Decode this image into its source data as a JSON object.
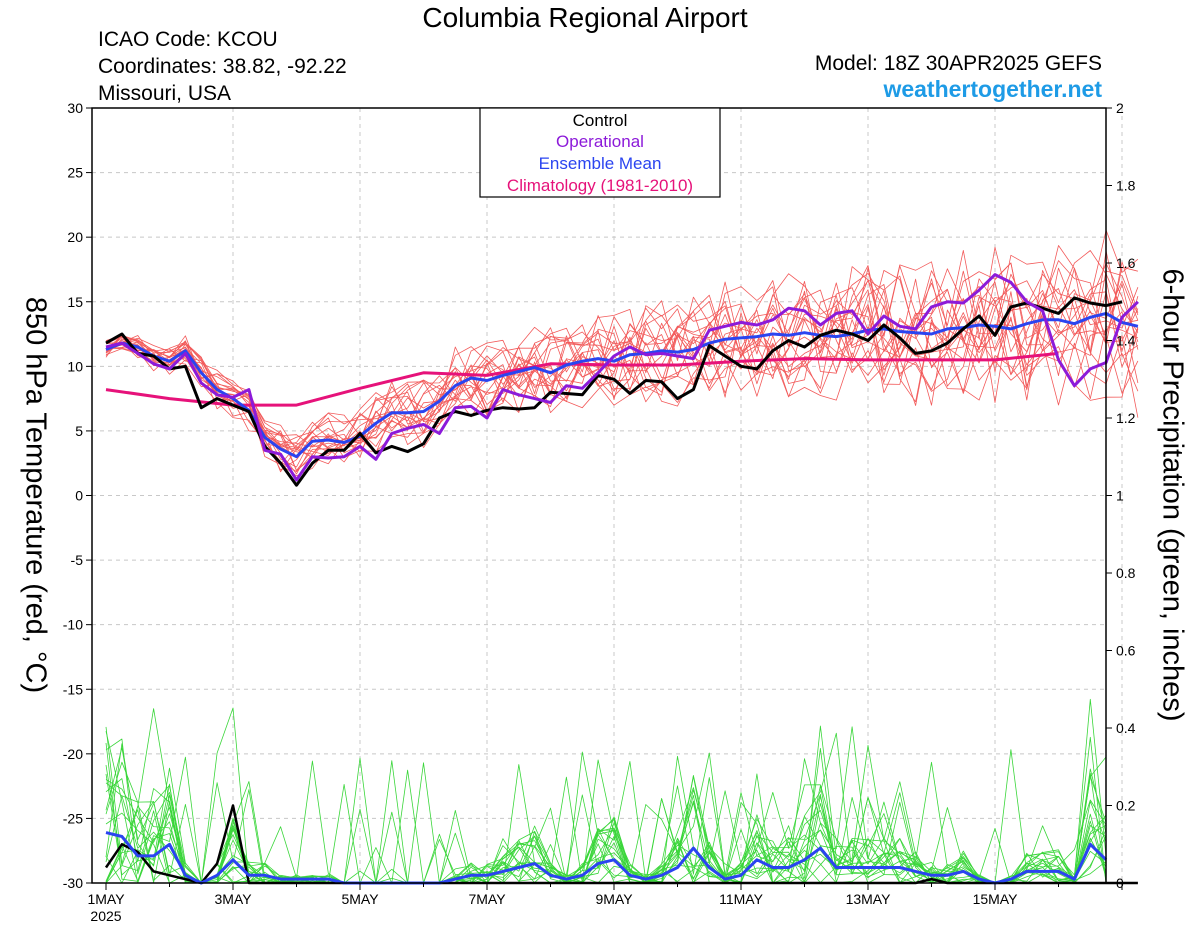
{
  "header": {
    "title": "Columbia Regional Airport",
    "icao": "ICAO Code: KCOU",
    "coords": "Coordinates: 38.82, -92.22",
    "region": "Missouri, USA",
    "model": "Model: 18Z 30APR2025 GEFS",
    "site": "weathertogether.net"
  },
  "legend": {
    "items": [
      {
        "label": "Control",
        "color": "#000000"
      },
      {
        "label": "Operational",
        "color": "#8c1ad9"
      },
      {
        "label": "Ensemble Mean",
        "color": "#2a44f0"
      },
      {
        "label": "Climatology (1981-2010)",
        "color": "#e6127a"
      }
    ]
  },
  "axes": {
    "left_label": "850 hPa Temperature (red, °C)",
    "right_label": "6-hour Precipitation (green, inches)",
    "left_ticks": [
      "30",
      "25",
      "20",
      "15",
      "10",
      "5",
      "0",
      "-5",
      "-10",
      "-15",
      "-20",
      "-25",
      "-30"
    ],
    "right_ticks": [
      "2",
      "1.8",
      "1.6",
      "1.4",
      "1.2",
      "1",
      "0.8",
      "0.6",
      "0.4",
      "0.2",
      "0"
    ],
    "x_ticks": [
      "1MAY",
      "3MAY",
      "5MAY",
      "7MAY",
      "9MAY",
      "11MAY",
      "13MAY",
      "15MAY"
    ],
    "x_year": "2025"
  },
  "colors": {
    "member_temp": "#f25a5a",
    "member_precip": "#3ad63a",
    "control": "#000000",
    "operational": "#8c1ad9",
    "mean": "#2a44f0",
    "climatology": "#e6127a"
  },
  "chart_data": {
    "type": "line",
    "title": "Columbia Regional Airport",
    "xlabel": "",
    "ylabel": "850 hPa Temperature (red, °C)",
    "y2label": "6-hour Precipitation (green, inches)",
    "ylim": [
      -30,
      30
    ],
    "y2lim": [
      0,
      2
    ],
    "x_unit": "days since 1MAY 2025 00Z (6-hourly steps)",
    "x_range": [
      0,
      16
    ],
    "temperature": {
      "control": [
        11.8,
        12.5,
        11,
        10.8,
        9.8,
        10,
        6.8,
        7.5,
        7,
        6.5,
        3.8,
        2.5,
        0.8,
        2.5,
        3.5,
        3.5,
        4.8,
        3.3,
        3.8,
        3.4,
        4,
        6,
        6.5,
        6.2,
        6.6,
        6.8,
        6.7,
        6.8,
        8,
        7.9,
        7.8,
        9.3,
        9,
        7.9,
        8.9,
        8.8,
        7.5,
        8.2,
        11.6,
        10.8,
        10,
        9.8,
        11.2,
        12,
        11.5,
        12.4,
        12.8,
        12.5,
        12,
        13.2,
        12.2,
        11,
        11.2,
        11.8,
        12.9,
        13.9,
        12.4,
        14.6,
        14.9,
        14.5,
        14.1,
        15.3,
        14.9,
        14.7,
        15
      ],
      "operational": [
        11.5,
        11.8,
        11,
        10.2,
        9.8,
        11,
        8.7,
        7.8,
        7.6,
        8.2,
        3.5,
        3.2,
        1.2,
        3,
        2.9,
        3,
        3.8,
        2.8,
        4.8,
        5.2,
        5.5,
        4.8,
        6.8,
        6.9,
        6,
        8.2,
        7.8,
        7.5,
        7.2,
        8.5,
        8.3,
        9.5,
        10.8,
        11.5,
        10.9,
        11,
        10.8,
        10.6,
        12.8,
        13.1,
        13.4,
        13.2,
        13.6,
        14.5,
        14.3,
        13.2,
        14.1,
        14.3,
        12.5,
        13.9,
        13.1,
        12.9,
        14.6,
        15,
        14.9,
        15.9,
        17.1,
        16.5,
        15,
        14.3,
        10.5,
        8.5,
        9.8,
        10.3,
        13.8,
        15
      ],
      "mean": [
        11.3,
        11.8,
        11.5,
        10.8,
        10.4,
        11.2,
        9.5,
        8.2,
        7.5,
        6.6,
        4.5,
        3.6,
        3,
        4.2,
        4.3,
        4.1,
        4.6,
        5.6,
        6.4,
        6.4,
        6.5,
        7.3,
        8.5,
        9.1,
        8.9,
        9.3,
        9.6,
        9.9,
        9.5,
        10.1,
        10.4,
        10.6,
        10.4,
        10.9,
        11,
        11.2,
        11.1,
        11.3,
        11.8,
        12.1,
        12.2,
        12.3,
        12.5,
        12.4,
        12.6,
        12.4,
        12.3,
        12.5,
        12.8,
        12.9,
        12.7,
        12.6,
        12.5,
        12.9,
        13,
        13.2,
        13.1,
        12.9,
        13.3,
        13.6,
        13.6,
        13.3,
        13.8,
        14.1,
        13.4,
        13.1
      ],
      "climatology": [
        8.2,
        7.5,
        7,
        7,
        8.3,
        9.5,
        9.3,
        10.2,
        10.1,
        10.1,
        10.4,
        10.6,
        10.5,
        10.5,
        10.5,
        11
      ]
    },
    "precipitation": {
      "control": [
        0.04,
        0.1,
        0.08,
        0.03,
        0.02,
        0.01,
        0,
        0.05,
        0.2,
        0,
        0,
        0,
        0,
        0,
        0,
        0,
        0,
        0,
        0,
        0,
        0,
        0,
        0,
        0,
        0,
        0,
        0,
        0,
        0,
        0,
        0,
        0,
        0,
        0,
        0,
        0,
        0,
        0,
        0,
        0,
        0,
        0,
        0,
        0,
        0,
        0,
        0,
        0,
        0,
        0,
        0,
        0,
        0.01,
        0,
        0,
        0,
        0,
        0,
        0,
        0,
        0,
        0,
        0,
        0,
        0,
        0
      ],
      "mean": [
        0.13,
        0.12,
        0.07,
        0.07,
        0.1,
        0.02,
        0,
        0.02,
        0.06,
        0.02,
        0.02,
        0.01,
        0.01,
        0.01,
        0.01,
        0,
        0,
        0,
        0,
        0,
        0,
        0,
        0.01,
        0.02,
        0.02,
        0.03,
        0.04,
        0.05,
        0.02,
        0.01,
        0.02,
        0.05,
        0.06,
        0.02,
        0.01,
        0.02,
        0.04,
        0.09,
        0.04,
        0.01,
        0.02,
        0.06,
        0.04,
        0.04,
        0.06,
        0.09,
        0.04,
        0.04,
        0.04,
        0.04,
        0.04,
        0.03,
        0.02,
        0.02,
        0.03,
        0.01,
        0,
        0.01,
        0.03,
        0.03,
        0.03,
        0.01,
        0.1,
        0.06
      ]
    }
  }
}
